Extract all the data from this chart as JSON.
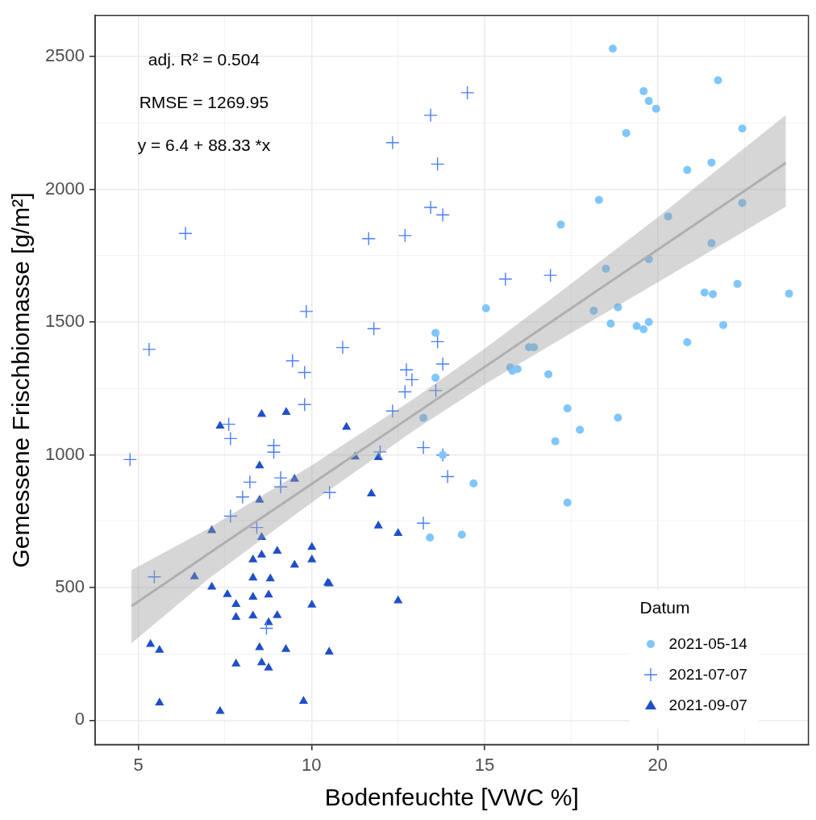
{
  "chart_data": {
    "type": "scatter",
    "xlabel": "Bodenfeuchte [VWC %]",
    "ylabel": "Gemessene Frischbiomasse [g/m²]",
    "legend_title": "Datum",
    "legend": "bottom right",
    "grid": true,
    "annotations": [
      "adj. R² = 0.504",
      "RMSE = 1269.95",
      "y = 6.4 + 88.33 *x"
    ],
    "xlim": [
      3.75,
      24.35
    ],
    "ylim": [
      -92,
      2655
    ],
    "xticks": [
      5,
      {
        "value": 7.5,
        "label": null
      },
      10,
      {
        "value": 12.5,
        "label": null
      },
      15,
      {
        "value": 17.5,
        "label": null
      },
      20,
      {
        "value": 22.5,
        "label": null
      }
    ],
    "yticks": [
      0,
      {
        "value": 250,
        "label": null
      },
      500,
      {
        "value": 750,
        "label": null
      },
      1000,
      {
        "value": 1250,
        "label": null
      },
      1500,
      {
        "value": 1750,
        "label": null
      },
      2000,
      {
        "value": 2250,
        "label": null
      },
      2500
    ],
    "series": [
      {
        "type": "line",
        "color": "#bebebe",
        "marker": "none",
        "x": [
          4.8,
          7,
          10,
          13,
          15,
          17,
          20,
          23.7
        ],
        "values": [
          430,
          625,
          890,
          1155,
          1331,
          1508,
          1773,
          2100
        ],
        "lower": [
          290,
          530,
          820,
          1095,
          1265,
          1420,
          1650,
          1935
        ],
        "upper": [
          565,
          720,
          960,
          1215,
          1400,
          1595,
          1895,
          2280
        ]
      },
      {
        "name": "2021-05-14",
        "marker": "circle",
        "color": "#7fc6fb",
        "x": [
          18.7,
          21.74,
          19.59,
          19.74,
          19.95,
          22.44,
          19.09,
          21.55,
          20.85,
          18.3,
          22.44,
          20.3,
          17.2,
          21.55,
          19.74,
          18.5,
          22.3,
          21.35,
          21.59,
          23.79,
          15.04,
          18.15,
          18.85,
          18.64,
          19.39,
          19.59,
          19.74,
          21.89,
          20.85,
          16.28,
          16.42,
          15.74,
          15.8,
          15.95,
          16.84,
          13.58,
          13.58,
          13.23,
          17.39,
          17.75,
          17.04,
          13.79,
          14.68,
          17.39,
          13.42,
          14.34,
          18.85
        ],
        "values": [
          2530,
          2411,
          2370,
          2333,
          2304,
          2229,
          2212,
          2101,
          2073,
          1960,
          1949,
          1898,
          1867,
          1797,
          1737,
          1701,
          1644,
          1611,
          1605,
          1607,
          1552,
          1543,
          1556,
          1494,
          1485,
          1473,
          1500,
          1489,
          1424,
          1405,
          1405,
          1329,
          1316,
          1323,
          1303,
          1459,
          1290,
          1139,
          1175,
          1094,
          1051,
          999,
          892,
          820,
          688,
          699,
          1140
        ]
      },
      {
        "name": "2021-07-07",
        "marker": "cross",
        "color": "#4b7ff5",
        "x": [
          14.5,
          13.44,
          12.34,
          13.64,
          13.44,
          13.79,
          6.36,
          11.65,
          12.7,
          15.6,
          16.9,
          9.85,
          11.8,
          10.9,
          5.31,
          13.64,
          9.45,
          13.79,
          9.8,
          12.74,
          12.9,
          12.7,
          13.59,
          9.8,
          12.34,
          13.23,
          13.79,
          13.93,
          11.98,
          10.52,
          13.23,
          7.61,
          7.66,
          8.91,
          8.91,
          4.76,
          8.22,
          8.01,
          9.11,
          9.11,
          7.66,
          8.42,
          5.46,
          8.7
        ],
        "values": [
          2364,
          2279,
          2176,
          2095,
          1932,
          1904,
          1834,
          1814,
          1826,
          1662,
          1676,
          1540,
          1475,
          1404,
          1397,
          1426,
          1354,
          1342,
          1310,
          1320,
          1283,
          1237,
          1242,
          1189,
          1165,
          1027,
          999,
          918,
          1011,
          858,
          742,
          1115,
          1061,
          1035,
          1010,
          982,
          897,
          841,
          913,
          879,
          769,
          726,
          540,
          346
        ]
      },
      {
        "name": "2021-09-07",
        "marker": "triangle",
        "color": "#1f4fc8",
        "x": [
          8.56,
          9.27,
          7.36,
          11.01,
          11.26,
          8.5,
          9.51,
          11.93,
          11.73,
          11.93,
          12.5,
          10.47,
          12.5,
          8.5,
          7.12,
          8.56,
          9.01,
          8.56,
          8.31,
          10.01,
          10.01,
          9.51,
          6.62,
          8.31,
          8.81,
          10.51,
          7.12,
          7.57,
          8.31,
          8.76,
          7.82,
          10.01,
          7.82,
          8.31,
          9.01,
          8.76,
          5.35,
          5.61,
          8.5,
          9.26,
          10.51,
          7.82,
          8.56,
          8.76,
          5.61,
          7.36,
          9.77
        ],
        "values": [
          1153,
          1160,
          1109,
          1104,
          992,
          959,
          909,
          990,
          853,
          732,
          704,
          517,
          450,
          830,
          715,
          689,
          637,
          623,
          605,
          652,
          605,
          585,
          541,
          536,
          533,
          514,
          502,
          474,
          464,
          472,
          437,
          434,
          388,
          393,
          395,
          368,
          286,
          264,
          274,
          267,
          257,
          212,
          217,
          197,
          66,
          34,
          72
        ]
      }
    ]
  }
}
